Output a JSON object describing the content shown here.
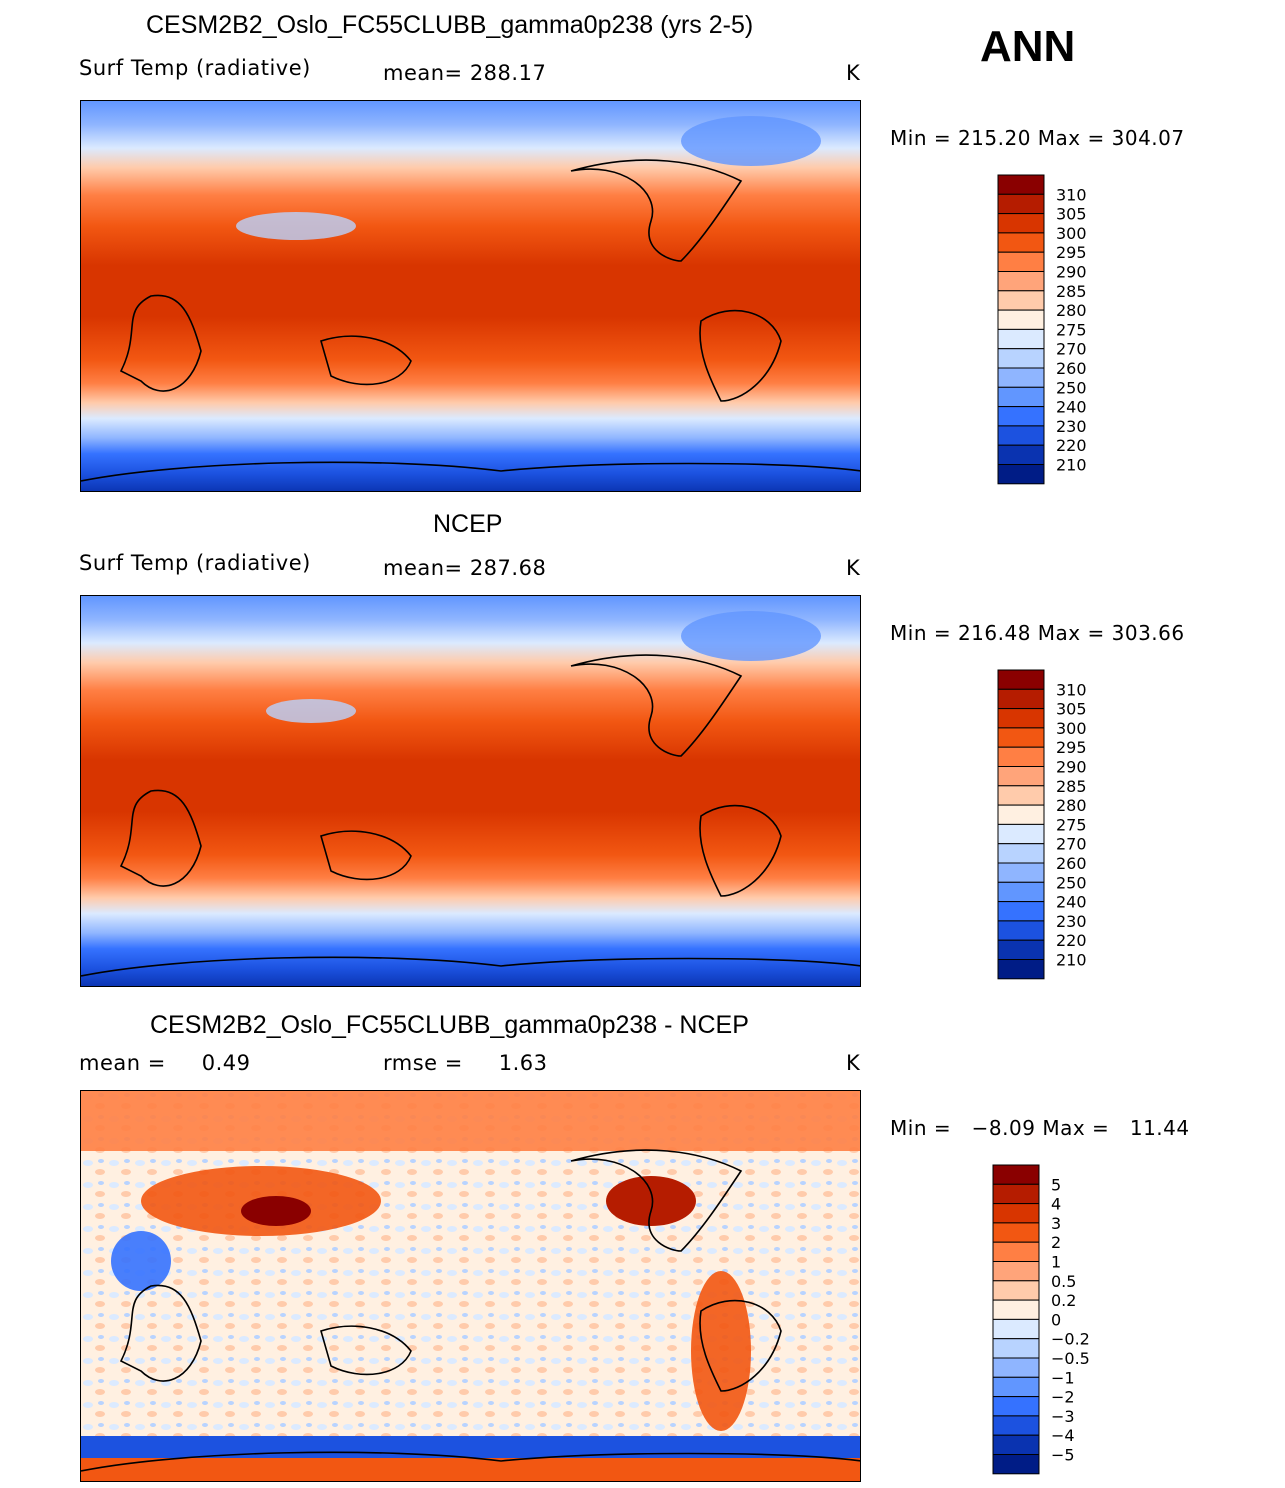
{
  "season": "ANN",
  "chart_data": [
    {
      "type": "heatmap",
      "title": "CESM2B2_Oslo_FC55CLUBB_gamma0p238 (yrs 2-5)",
      "variable": "Surf Temp (radiative)",
      "mean_text": "mean= 288.17",
      "units": "K",
      "min_max_text": "Min = 215.20 Max = 304.07",
      "min": 215.2,
      "max": 304.07,
      "colorbar_levels": [
        "310",
        "305",
        "300",
        "295",
        "290",
        "285",
        "280",
        "275",
        "270",
        "260",
        "250",
        "240",
        "230",
        "220",
        "210"
      ],
      "colors": [
        "#8a0000",
        "#b51c00",
        "#d83500",
        "#f25712",
        "#ff7f44",
        "#ffa47a",
        "#ffcbab",
        "#fff0e1",
        "#dbeaff",
        "#b8d3ff",
        "#8fb5ff",
        "#6196ff",
        "#3572ff",
        "#1c52e0",
        "#0a33b0",
        "#001c86"
      ]
    },
    {
      "type": "heatmap",
      "title": "NCEP",
      "variable": "Surf Temp (radiative)",
      "mean_text": "mean= 287.68",
      "units": "K",
      "min_max_text": "Min = 216.48 Max = 303.66",
      "min": 216.48,
      "max": 303.66,
      "colorbar_levels": [
        "310",
        "305",
        "300",
        "295",
        "290",
        "285",
        "280",
        "275",
        "270",
        "260",
        "250",
        "240",
        "230",
        "220",
        "210"
      ],
      "colors": [
        "#8a0000",
        "#b51c00",
        "#d83500",
        "#f25712",
        "#ff7f44",
        "#ffa47a",
        "#ffcbab",
        "#fff0e1",
        "#dbeaff",
        "#b8d3ff",
        "#8fb5ff",
        "#6196ff",
        "#3572ff",
        "#1c52e0",
        "#0a33b0",
        "#001c86"
      ]
    },
    {
      "type": "heatmap",
      "title": "CESM2B2_Oslo_FC55CLUBB_gamma0p238 - NCEP",
      "mean_text": "mean =     0.49",
      "rmse_text": "rmse =     1.63",
      "mean": 0.49,
      "rmse": 1.63,
      "units": "K",
      "min_max_text": "Min =   −8.09 Max =   11.44",
      "min": -8.09,
      "max": 11.44,
      "colorbar_levels": [
        "5",
        "4",
        "3",
        "2",
        "1",
        "0.5",
        "0.2",
        "0",
        "−0.2",
        "−0.5",
        "−1",
        "−2",
        "−3",
        "−4",
        "−5"
      ],
      "colors": [
        "#8a0000",
        "#b51c00",
        "#d83500",
        "#f25712",
        "#ff7f44",
        "#ffa47a",
        "#ffcbab",
        "#fff0e1",
        "#dbeaff",
        "#b8d3ff",
        "#8fb5ff",
        "#6196ff",
        "#3572ff",
        "#1c52e0",
        "#0a33b0",
        "#001c86"
      ]
    }
  ]
}
